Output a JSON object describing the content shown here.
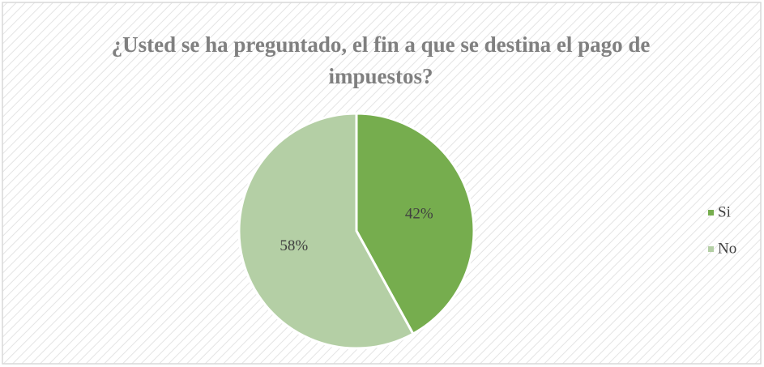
{
  "chart_data": {
    "type": "pie",
    "title": "¿Usted se ha preguntado, el fin a que se destina el pago de impuestos?",
    "categories": [
      "Si",
      "No"
    ],
    "values": [
      42,
      58
    ],
    "value_labels": [
      "42%",
      "58%"
    ],
    "colors": [
      "#76ad4e",
      "#b4cfa5"
    ],
    "legend": "right"
  }
}
